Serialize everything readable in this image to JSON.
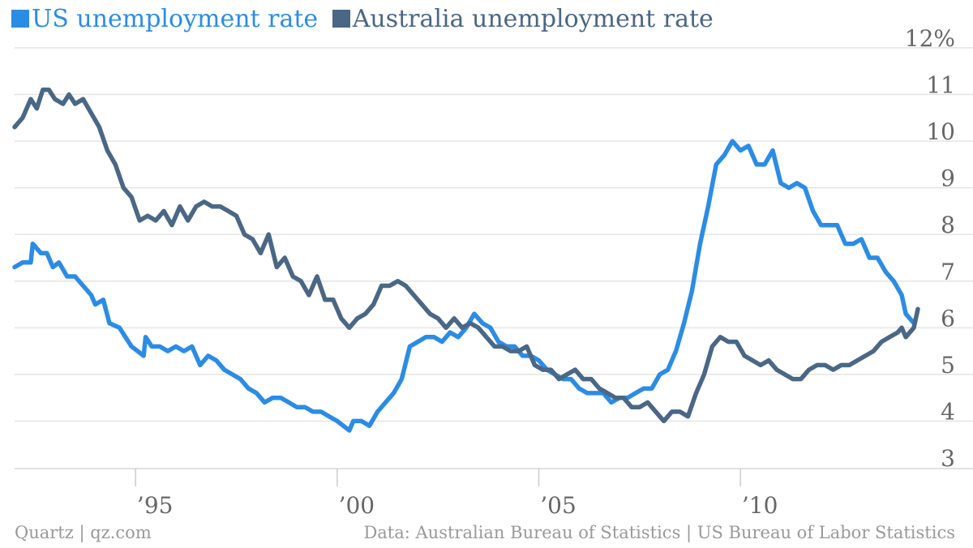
{
  "legend": [
    {
      "label": "US unemployment rate",
      "color": "#2b8ce6"
    },
    {
      "label": "Australia unemployment rate",
      "color": "#4a6785"
    }
  ],
  "footer": {
    "credit": "Quartz | qz.com",
    "source": "Data: Australian Bureau of Statistics | US Bureau of Labor Statistics"
  },
  "chart_data": {
    "type": "line",
    "xlim": [
      1992.0,
      2014.4
    ],
    "ylim": [
      3,
      12
    ],
    "yticks": [
      {
        "value": 3,
        "label": "3"
      },
      {
        "value": 4,
        "label": "4"
      },
      {
        "value": 5,
        "label": "5"
      },
      {
        "value": 6,
        "label": "6"
      },
      {
        "value": 7,
        "label": "7"
      },
      {
        "value": 8,
        "label": "8"
      },
      {
        "value": 9,
        "label": "9"
      },
      {
        "value": 10,
        "label": "10"
      },
      {
        "value": 11,
        "label": "11"
      },
      {
        "value": 12,
        "label": "12%"
      }
    ],
    "xticks": [
      {
        "value": 1995,
        "label": "’95"
      },
      {
        "value": 2000,
        "label": "’00"
      },
      {
        "value": 2005,
        "label": "’05"
      },
      {
        "value": 2010,
        "label": "’10"
      }
    ],
    "grid": "horizontal",
    "legend_position": "top-left",
    "series": [
      {
        "name": "US unemployment rate",
        "color": "#2b8ce6",
        "points": [
          [
            1992.0,
            7.3
          ],
          [
            1992.2,
            7.4
          ],
          [
            1992.4,
            7.4
          ],
          [
            1992.45,
            7.8
          ],
          [
            1992.65,
            7.6
          ],
          [
            1992.8,
            7.6
          ],
          [
            1992.95,
            7.3
          ],
          [
            1993.1,
            7.4
          ],
          [
            1993.3,
            7.1
          ],
          [
            1993.5,
            7.1
          ],
          [
            1993.7,
            6.9
          ],
          [
            1993.9,
            6.7
          ],
          [
            1994.0,
            6.5
          ],
          [
            1994.2,
            6.6
          ],
          [
            1994.35,
            6.1
          ],
          [
            1994.6,
            6.0
          ],
          [
            1994.9,
            5.6
          ],
          [
            1995.05,
            5.5
          ],
          [
            1995.2,
            5.4
          ],
          [
            1995.25,
            5.8
          ],
          [
            1995.4,
            5.6
          ],
          [
            1995.6,
            5.6
          ],
          [
            1995.8,
            5.5
          ],
          [
            1996.0,
            5.6
          ],
          [
            1996.2,
            5.5
          ],
          [
            1996.4,
            5.6
          ],
          [
            1996.6,
            5.2
          ],
          [
            1996.8,
            5.4
          ],
          [
            1997.0,
            5.3
          ],
          [
            1997.2,
            5.1
          ],
          [
            1997.4,
            5.0
          ],
          [
            1997.6,
            4.9
          ],
          [
            1997.8,
            4.7
          ],
          [
            1998.0,
            4.6
          ],
          [
            1998.2,
            4.4
          ],
          [
            1998.4,
            4.5
          ],
          [
            1998.6,
            4.5
          ],
          [
            1998.8,
            4.4
          ],
          [
            1999.0,
            4.3
          ],
          [
            1999.2,
            4.3
          ],
          [
            1999.4,
            4.2
          ],
          [
            1999.6,
            4.2
          ],
          [
            1999.8,
            4.1
          ],
          [
            2000.0,
            4.0
          ],
          [
            2000.3,
            3.8
          ],
          [
            2000.4,
            4.0
          ],
          [
            2000.6,
            4.0
          ],
          [
            2000.8,
            3.9
          ],
          [
            2001.0,
            4.2
          ],
          [
            2001.2,
            4.4
          ],
          [
            2001.4,
            4.6
          ],
          [
            2001.6,
            4.9
          ],
          [
            2001.8,
            5.6
          ],
          [
            2002.0,
            5.7
          ],
          [
            2002.2,
            5.8
          ],
          [
            2002.4,
            5.8
          ],
          [
            2002.6,
            5.7
          ],
          [
            2002.8,
            5.9
          ],
          [
            2003.0,
            5.8
          ],
          [
            2003.2,
            6.0
          ],
          [
            2003.4,
            6.3
          ],
          [
            2003.6,
            6.1
          ],
          [
            2003.8,
            6.0
          ],
          [
            2004.0,
            5.7
          ],
          [
            2004.2,
            5.6
          ],
          [
            2004.4,
            5.6
          ],
          [
            2004.6,
            5.4
          ],
          [
            2004.8,
            5.4
          ],
          [
            2005.0,
            5.3
          ],
          [
            2005.2,
            5.1
          ],
          [
            2005.4,
            5.0
          ],
          [
            2005.6,
            4.9
          ],
          [
            2005.8,
            4.9
          ],
          [
            2006.0,
            4.7
          ],
          [
            2006.2,
            4.6
          ],
          [
            2006.4,
            4.6
          ],
          [
            2006.6,
            4.6
          ],
          [
            2006.8,
            4.4
          ],
          [
            2007.0,
            4.5
          ],
          [
            2007.2,
            4.5
          ],
          [
            2007.4,
            4.6
          ],
          [
            2007.6,
            4.7
          ],
          [
            2007.8,
            4.7
          ],
          [
            2008.0,
            5.0
          ],
          [
            2008.2,
            5.1
          ],
          [
            2008.4,
            5.5
          ],
          [
            2008.6,
            6.1
          ],
          [
            2008.8,
            6.8
          ],
          [
            2009.0,
            7.8
          ],
          [
            2009.2,
            8.6
          ],
          [
            2009.4,
            9.5
          ],
          [
            2009.6,
            9.7
          ],
          [
            2009.8,
            10.0
          ],
          [
            2010.0,
            9.8
          ],
          [
            2010.2,
            9.9
          ],
          [
            2010.4,
            9.5
          ],
          [
            2010.6,
            9.5
          ],
          [
            2010.8,
            9.8
          ],
          [
            2011.0,
            9.1
          ],
          [
            2011.2,
            9.0
          ],
          [
            2011.4,
            9.1
          ],
          [
            2011.6,
            9.0
          ],
          [
            2011.8,
            8.5
          ],
          [
            2012.0,
            8.2
          ],
          [
            2012.2,
            8.2
          ],
          [
            2012.4,
            8.2
          ],
          [
            2012.6,
            7.8
          ],
          [
            2012.8,
            7.8
          ],
          [
            2013.0,
            7.9
          ],
          [
            2013.2,
            7.5
          ],
          [
            2013.4,
            7.5
          ],
          [
            2013.6,
            7.2
          ],
          [
            2013.8,
            7.0
          ],
          [
            2014.0,
            6.7
          ],
          [
            2014.1,
            6.3
          ],
          [
            2014.3,
            6.1
          ]
        ]
      },
      {
        "name": "Australia unemployment rate",
        "color": "#4a6785",
        "points": [
          [
            1992.0,
            10.3
          ],
          [
            1992.2,
            10.5
          ],
          [
            1992.4,
            10.9
          ],
          [
            1992.55,
            10.7
          ],
          [
            1992.7,
            11.1
          ],
          [
            1992.85,
            11.1
          ],
          [
            1993.0,
            10.9
          ],
          [
            1993.2,
            10.8
          ],
          [
            1993.35,
            11.0
          ],
          [
            1993.5,
            10.8
          ],
          [
            1993.7,
            10.9
          ],
          [
            1993.9,
            10.6
          ],
          [
            1994.1,
            10.3
          ],
          [
            1994.3,
            9.8
          ],
          [
            1994.5,
            9.5
          ],
          [
            1994.7,
            9.0
          ],
          [
            1994.9,
            8.8
          ],
          [
            1995.1,
            8.3
          ],
          [
            1995.3,
            8.4
          ],
          [
            1995.5,
            8.3
          ],
          [
            1995.7,
            8.5
          ],
          [
            1995.9,
            8.2
          ],
          [
            1996.1,
            8.6
          ],
          [
            1996.3,
            8.3
          ],
          [
            1996.5,
            8.6
          ],
          [
            1996.7,
            8.7
          ],
          [
            1996.9,
            8.6
          ],
          [
            1997.1,
            8.6
          ],
          [
            1997.3,
            8.5
          ],
          [
            1997.5,
            8.4
          ],
          [
            1997.7,
            8.0
          ],
          [
            1997.9,
            7.9
          ],
          [
            1998.1,
            7.6
          ],
          [
            1998.3,
            8.0
          ],
          [
            1998.5,
            7.3
          ],
          [
            1998.7,
            7.5
          ],
          [
            1998.9,
            7.1
          ],
          [
            1999.1,
            7.0
          ],
          [
            1999.3,
            6.7
          ],
          [
            1999.5,
            7.1
          ],
          [
            1999.7,
            6.6
          ],
          [
            1999.9,
            6.6
          ],
          [
            2000.1,
            6.2
          ],
          [
            2000.3,
            6.0
          ],
          [
            2000.5,
            6.2
          ],
          [
            2000.7,
            6.3
          ],
          [
            2000.9,
            6.5
          ],
          [
            2001.1,
            6.9
          ],
          [
            2001.3,
            6.9
          ],
          [
            2001.5,
            7.0
          ],
          [
            2001.7,
            6.9
          ],
          [
            2001.9,
            6.7
          ],
          [
            2002.1,
            6.5
          ],
          [
            2002.3,
            6.3
          ],
          [
            2002.5,
            6.2
          ],
          [
            2002.7,
            6.0
          ],
          [
            2002.9,
            6.2
          ],
          [
            2003.1,
            6.0
          ],
          [
            2003.3,
            6.1
          ],
          [
            2003.5,
            6.0
          ],
          [
            2003.7,
            5.8
          ],
          [
            2003.9,
            5.6
          ],
          [
            2004.1,
            5.6
          ],
          [
            2004.3,
            5.5
          ],
          [
            2004.5,
            5.5
          ],
          [
            2004.7,
            5.6
          ],
          [
            2004.9,
            5.2
          ],
          [
            2005.1,
            5.1
          ],
          [
            2005.3,
            5.1
          ],
          [
            2005.5,
            4.9
          ],
          [
            2005.7,
            5.0
          ],
          [
            2005.9,
            5.1
          ],
          [
            2006.1,
            4.9
          ],
          [
            2006.3,
            4.9
          ],
          [
            2006.5,
            4.7
          ],
          [
            2006.7,
            4.6
          ],
          [
            2006.9,
            4.5
          ],
          [
            2007.1,
            4.5
          ],
          [
            2007.3,
            4.3
          ],
          [
            2007.5,
            4.3
          ],
          [
            2007.7,
            4.4
          ],
          [
            2007.9,
            4.2
          ],
          [
            2008.1,
            4.0
          ],
          [
            2008.3,
            4.2
          ],
          [
            2008.5,
            4.2
          ],
          [
            2008.7,
            4.1
          ],
          [
            2008.9,
            4.6
          ],
          [
            2009.1,
            5.0
          ],
          [
            2009.3,
            5.6
          ],
          [
            2009.5,
            5.8
          ],
          [
            2009.7,
            5.7
          ],
          [
            2009.9,
            5.7
          ],
          [
            2010.1,
            5.4
          ],
          [
            2010.3,
            5.3
          ],
          [
            2010.5,
            5.2
          ],
          [
            2010.7,
            5.3
          ],
          [
            2010.9,
            5.1
          ],
          [
            2011.1,
            5.0
          ],
          [
            2011.3,
            4.9
          ],
          [
            2011.5,
            4.9
          ],
          [
            2011.7,
            5.1
          ],
          [
            2011.9,
            5.2
          ],
          [
            2012.1,
            5.2
          ],
          [
            2012.3,
            5.1
          ],
          [
            2012.5,
            5.2
          ],
          [
            2012.7,
            5.2
          ],
          [
            2012.9,
            5.3
          ],
          [
            2013.1,
            5.4
          ],
          [
            2013.3,
            5.5
          ],
          [
            2013.5,
            5.7
          ],
          [
            2013.7,
            5.8
          ],
          [
            2013.9,
            5.9
          ],
          [
            2014.0,
            6.0
          ],
          [
            2014.1,
            5.8
          ],
          [
            2014.3,
            6.0
          ],
          [
            2014.4,
            6.4
          ]
        ]
      }
    ]
  }
}
